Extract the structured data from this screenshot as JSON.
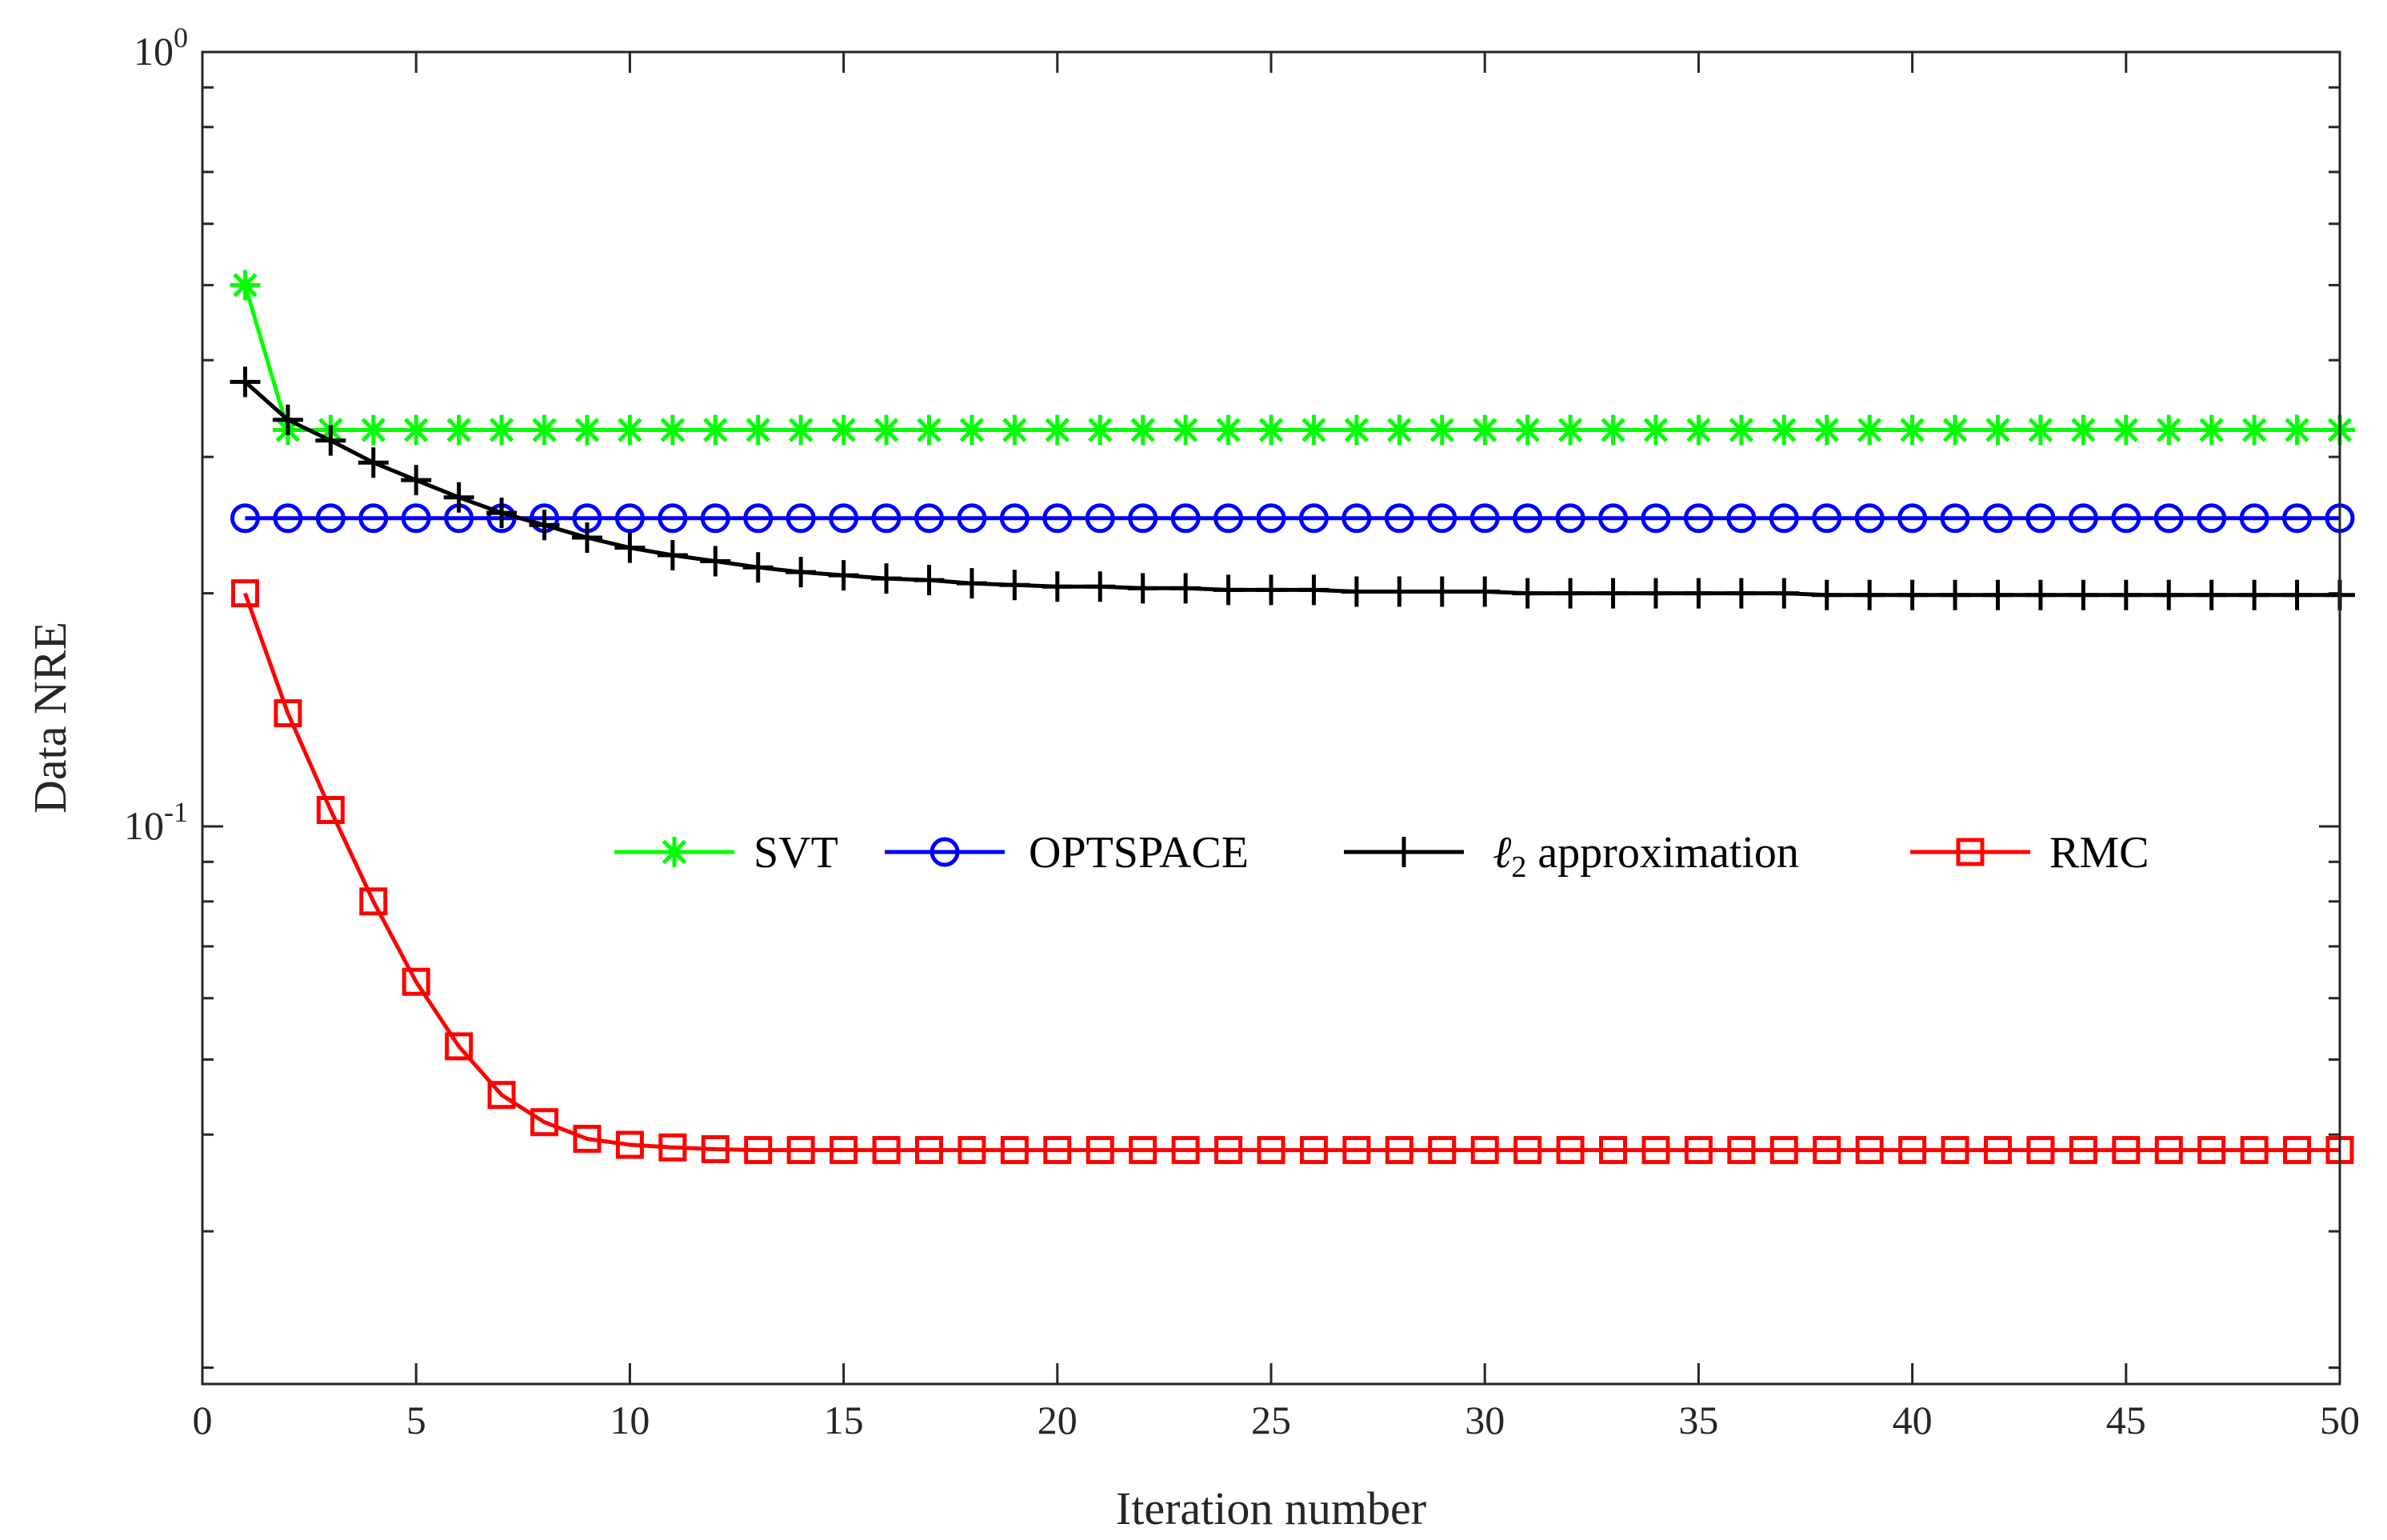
{
  "chart_data": {
    "type": "line",
    "title": "",
    "xlabel": "Iteration number",
    "ylabel": "Data NRE",
    "xlim": [
      0,
      50
    ],
    "ylim": [
      0.02,
      1
    ],
    "yscale": "log",
    "xticks": [
      0,
      5,
      10,
      15,
      20,
      25,
      30,
      35,
      40,
      45,
      50
    ],
    "yticks": [
      {
        "value": 1,
        "base": "10",
        "exponent": "0"
      },
      {
        "value": 0.1,
        "base": "10",
        "exponent": "-1"
      }
    ],
    "grid": false,
    "legend_position": "center",
    "series": [
      {
        "name": "SVT",
        "color": "#00ff00",
        "marker": "asterisk",
        "x": [
          1,
          2,
          3,
          4,
          5,
          6,
          7,
          8,
          9,
          10,
          11,
          12,
          13,
          14,
          15,
          16,
          17,
          18,
          19,
          20,
          21,
          22,
          23,
          24,
          25,
          26,
          27,
          28,
          29,
          30,
          31,
          32,
          33,
          34,
          35,
          36,
          37,
          38,
          39,
          40,
          41,
          42,
          43,
          44,
          45,
          46,
          47,
          48,
          49,
          50
        ],
        "values": [
          0.5,
          0.325,
          0.325,
          0.325,
          0.325,
          0.325,
          0.325,
          0.325,
          0.325,
          0.325,
          0.325,
          0.325,
          0.325,
          0.325,
          0.325,
          0.325,
          0.325,
          0.325,
          0.325,
          0.325,
          0.325,
          0.325,
          0.325,
          0.325,
          0.325,
          0.325,
          0.325,
          0.325,
          0.325,
          0.325,
          0.325,
          0.325,
          0.325,
          0.325,
          0.325,
          0.325,
          0.325,
          0.325,
          0.325,
          0.325,
          0.325,
          0.325,
          0.325,
          0.325,
          0.325,
          0.325,
          0.325,
          0.325,
          0.325,
          0.325
        ]
      },
      {
        "name": "OPTSPACE",
        "color": "#0000ff",
        "marker": "circle",
        "x": [
          1,
          2,
          3,
          4,
          5,
          6,
          7,
          8,
          9,
          10,
          11,
          12,
          13,
          14,
          15,
          16,
          17,
          18,
          19,
          20,
          21,
          22,
          23,
          24,
          25,
          26,
          27,
          28,
          29,
          30,
          31,
          32,
          33,
          34,
          35,
          36,
          37,
          38,
          39,
          40,
          41,
          42,
          43,
          44,
          45,
          46,
          47,
          48,
          49,
          50
        ],
        "values": [
          0.25,
          0.25,
          0.25,
          0.25,
          0.25,
          0.25,
          0.25,
          0.25,
          0.25,
          0.25,
          0.25,
          0.25,
          0.25,
          0.25,
          0.25,
          0.25,
          0.25,
          0.25,
          0.25,
          0.25,
          0.25,
          0.25,
          0.25,
          0.25,
          0.25,
          0.25,
          0.25,
          0.25,
          0.25,
          0.25,
          0.25,
          0.25,
          0.25,
          0.25,
          0.25,
          0.25,
          0.25,
          0.25,
          0.25,
          0.25,
          0.25,
          0.25,
          0.25,
          0.25,
          0.25,
          0.25,
          0.25,
          0.25,
          0.25,
          0.25
        ]
      },
      {
        "name": "ℓ",
        "name_subscript": "2",
        "name_suffix": " approximation",
        "color": "#000000",
        "marker": "plus",
        "x": [
          1,
          2,
          3,
          4,
          5,
          6,
          7,
          8,
          9,
          10,
          11,
          12,
          13,
          14,
          15,
          16,
          17,
          18,
          19,
          20,
          21,
          22,
          23,
          24,
          25,
          26,
          27,
          28,
          29,
          30,
          31,
          32,
          33,
          34,
          35,
          36,
          37,
          38,
          39,
          40,
          41,
          42,
          43,
          44,
          45,
          46,
          47,
          48,
          49,
          50
        ],
        "values": [
          0.375,
          0.335,
          0.315,
          0.295,
          0.28,
          0.266,
          0.254,
          0.245,
          0.236,
          0.229,
          0.224,
          0.22,
          0.216,
          0.213,
          0.211,
          0.209,
          0.208,
          0.206,
          0.205,
          0.204,
          0.204,
          0.203,
          0.203,
          0.202,
          0.202,
          0.202,
          0.201,
          0.201,
          0.201,
          0.201,
          0.2,
          0.2,
          0.2,
          0.2,
          0.2,
          0.2,
          0.2,
          0.199,
          0.199,
          0.199,
          0.199,
          0.199,
          0.199,
          0.199,
          0.199,
          0.199,
          0.199,
          0.199,
          0.199,
          0.199
        ]
      },
      {
        "name": "RMC",
        "color": "#ff0000",
        "marker": "square",
        "x": [
          1,
          2,
          3,
          4,
          5,
          6,
          7,
          8,
          9,
          10,
          11,
          12,
          13,
          14,
          15,
          16,
          17,
          18,
          19,
          20,
          21,
          22,
          23,
          24,
          25,
          26,
          27,
          28,
          29,
          30,
          31,
          32,
          33,
          34,
          35,
          36,
          37,
          38,
          39,
          40,
          41,
          42,
          43,
          44,
          45,
          46,
          47,
          48,
          49,
          50
        ],
        "values": [
          0.2,
          0.14,
          0.105,
          0.08,
          0.063,
          0.052,
          0.045,
          0.0415,
          0.0395,
          0.0388,
          0.0385,
          0.0383,
          0.0382,
          0.0382,
          0.0382,
          0.0382,
          0.0382,
          0.0382,
          0.0382,
          0.0382,
          0.0382,
          0.0382,
          0.0382,
          0.0382,
          0.0382,
          0.0382,
          0.0382,
          0.0382,
          0.0382,
          0.0382,
          0.0382,
          0.0382,
          0.0382,
          0.0382,
          0.0382,
          0.0382,
          0.0382,
          0.0382,
          0.0382,
          0.0382,
          0.0382,
          0.0382,
          0.0382,
          0.0382,
          0.0382,
          0.0382,
          0.0382,
          0.0382,
          0.0382,
          0.0382
        ]
      }
    ]
  }
}
